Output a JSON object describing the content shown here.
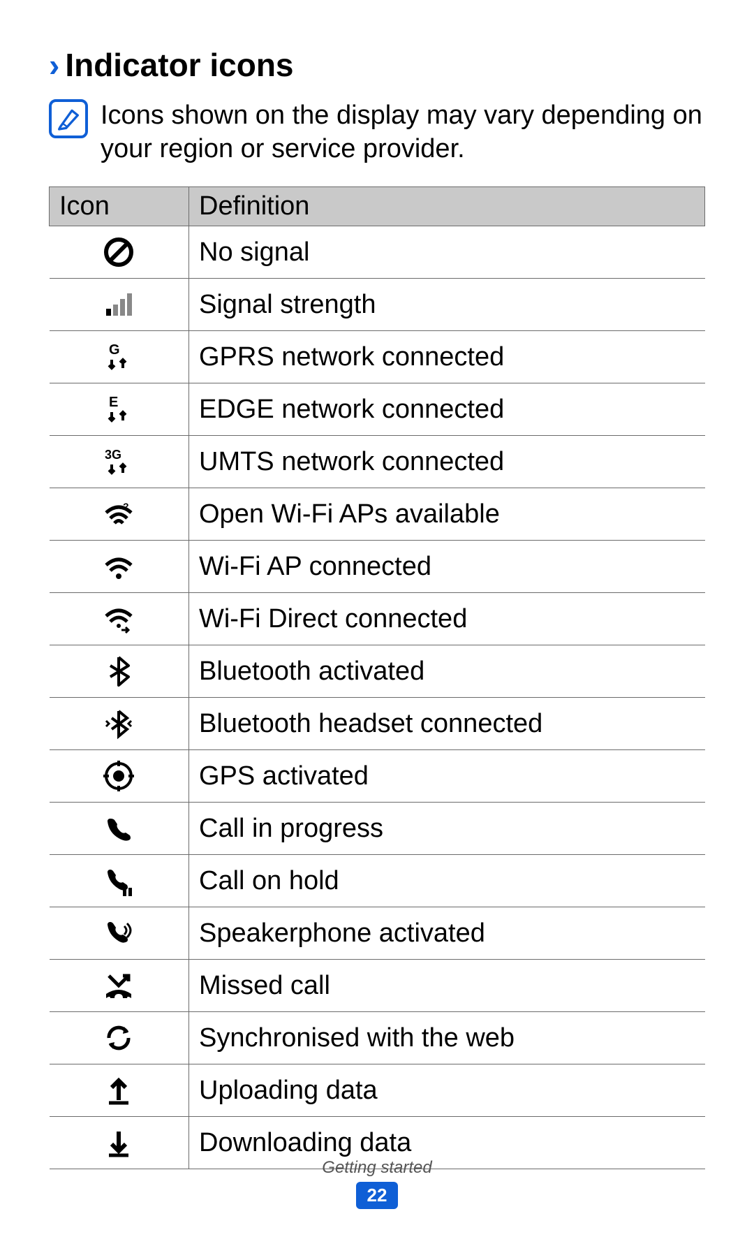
{
  "heading": {
    "chevron": "›",
    "title": "Indicator icons"
  },
  "note": "Icons shown on the display may vary depending on your region or service provider.",
  "table": {
    "columns": [
      "Icon",
      "Definition"
    ],
    "header_bg": "#c9c9c9",
    "border_color": "#6b6b6b",
    "rows": [
      {
        "icon": "no-signal",
        "definition": "No signal"
      },
      {
        "icon": "signal-strength",
        "definition": "Signal strength"
      },
      {
        "icon": "gprs",
        "definition": "GPRS network connected"
      },
      {
        "icon": "edge",
        "definition": "EDGE network connected"
      },
      {
        "icon": "umts",
        "definition": "UMTS network connected"
      },
      {
        "icon": "wifi-open",
        "definition": "Open Wi-Fi APs available"
      },
      {
        "icon": "wifi-connected",
        "definition": "Wi-Fi AP connected"
      },
      {
        "icon": "wifi-direct",
        "definition": "Wi-Fi Direct connected"
      },
      {
        "icon": "bluetooth",
        "definition": "Bluetooth activated"
      },
      {
        "icon": "bluetooth-headset",
        "definition": "Bluetooth headset connected"
      },
      {
        "icon": "gps",
        "definition": "GPS activated"
      },
      {
        "icon": "call-progress",
        "definition": "Call in progress"
      },
      {
        "icon": "call-hold",
        "definition": "Call on hold"
      },
      {
        "icon": "speakerphone",
        "definition": "Speakerphone activated"
      },
      {
        "icon": "missed-call",
        "definition": "Missed call"
      },
      {
        "icon": "sync",
        "definition": "Synchronised with the web"
      },
      {
        "icon": "upload",
        "definition": "Uploading data"
      },
      {
        "icon": "download",
        "definition": "Downloading data"
      }
    ]
  },
  "footer": {
    "section": "Getting started",
    "page": "22"
  },
  "colors": {
    "accent": "#0f5fd6",
    "text": "#000000",
    "background": "#ffffff"
  }
}
